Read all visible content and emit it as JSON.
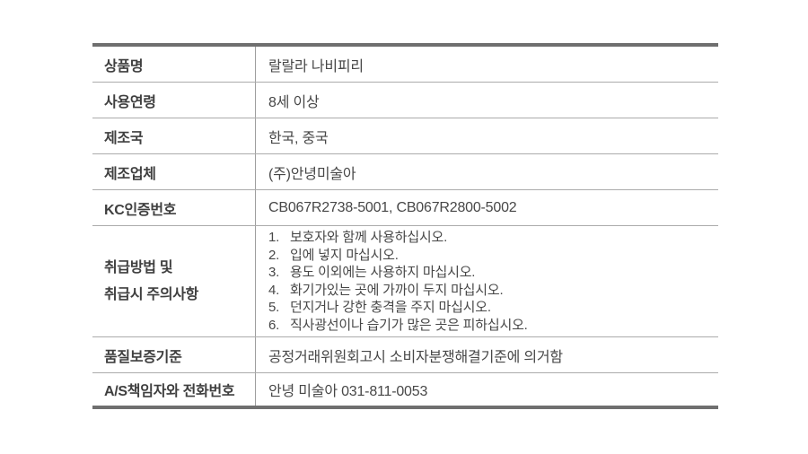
{
  "table": {
    "rows": [
      {
        "label": "상품명",
        "value": "랄랄라 나비피리"
      },
      {
        "label": "사용연령",
        "value": "8세 이상"
      },
      {
        "label": "제조국",
        "value": "한국, 중국"
      },
      {
        "label": "제조업체",
        "value": "(주)안녕미술아"
      },
      {
        "label": "KC인증번호",
        "value": "CB067R2738-5001, CB067R2800-5002"
      },
      {
        "label_lines": [
          "취급방법 및",
          "취급시 주의사항"
        ],
        "precautions": [
          {
            "num": "1.",
            "text": "보호자와 함께 사용하십시오."
          },
          {
            "num": "2.",
            "text": "입에 넣지 마십시오."
          },
          {
            "num": "3.",
            "text": "용도 이외에는 사용하지 마십시오."
          },
          {
            "num": "4.",
            "text": "화기가있는 곳에 가까이 두지 마십시오."
          },
          {
            "num": "5.",
            "text": "던지거나 강한 충격을 주지 마십시오."
          },
          {
            "num": "6.",
            "text": "직사광선이나 습기가 많은 곳은 피하십시오."
          }
        ]
      },
      {
        "label": "품질보증기준",
        "value": "공정거래위원회고시 소비자분쟁해결기준에 의거함"
      },
      {
        "label": "A/S책임자와 전화번호",
        "value": "안녕 미술아 031-811-0053"
      }
    ]
  },
  "colors": {
    "background": "#ffffff",
    "border_heavy": "#6f6f6f",
    "border_light": "#ababab",
    "column_divider": "#9e9e9e",
    "label_text": "#3f3f3f",
    "value_text": "#474747"
  }
}
